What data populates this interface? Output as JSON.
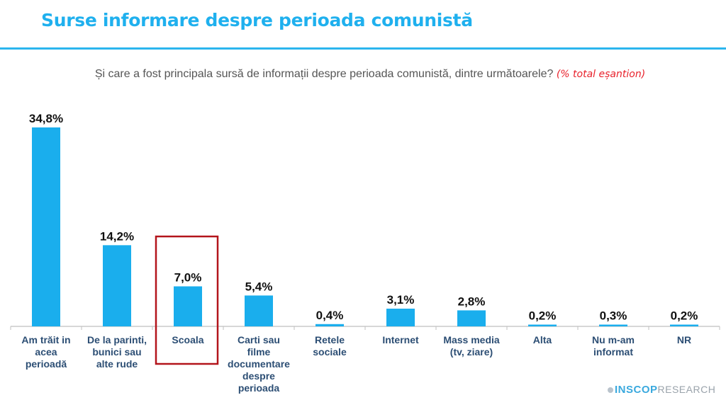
{
  "header": {
    "title": "Surse informare despre perioada comunistă",
    "question": "Și care a fost principala sursă de informații despre perioada comunistă, dintre următoarele?",
    "note": "(% total eșantion)"
  },
  "logo": {
    "brand": "INSCOP",
    "suffix": "RESEARCH"
  },
  "colors": {
    "bar": "#1aaeed",
    "title": "#1fb0ee",
    "category_label": "#2c4e74",
    "highlight_box": "#b3141b",
    "note": "#e8202a"
  },
  "chart_data": {
    "type": "bar",
    "title": "Surse informare despre perioada comunistă",
    "xlabel": "",
    "ylabel": "",
    "ylim": [
      0,
      36
    ],
    "grid": false,
    "legend": "none",
    "categories": [
      [
        "Am trăit in",
        "acea",
        "perioadă"
      ],
      [
        "De la parinti,",
        "bunici sau",
        "alte rude"
      ],
      [
        "Scoala"
      ],
      [
        "Carti sau",
        "filme",
        "documentare",
        "despre",
        "perioada"
      ],
      [
        "Retele",
        "sociale"
      ],
      [
        "Internet"
      ],
      [
        "Mass media",
        "(tv, ziare)"
      ],
      [
        "Alta"
      ],
      [
        "Nu m-am",
        "informat"
      ],
      [
        "NR"
      ]
    ],
    "values": [
      34.8,
      14.2,
      7.0,
      5.4,
      0.4,
      3.1,
      2.8,
      0.2,
      0.3,
      0.2
    ],
    "labels": [
      "34,8%",
      "14,2%",
      "7,0%",
      "5,4%",
      "0,4%",
      "3,1%",
      "2,8%",
      "0,2%",
      "0,3%",
      "0,2%"
    ],
    "highlighted_category": "Scoala"
  }
}
